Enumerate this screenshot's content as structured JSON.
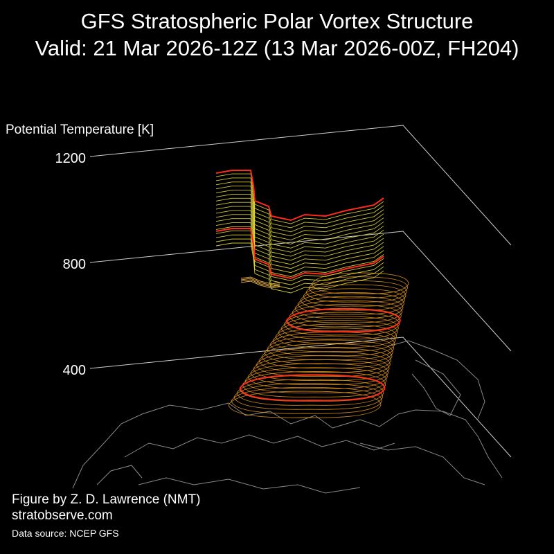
{
  "chart_data": {
    "type": "3d-isosurface",
    "title": "GFS Stratospheric Polar Vortex Structure",
    "subtitle": "Valid: 21 Mar 2026-12Z  (13 Mar 2026-00Z, FH204)",
    "zlabel": "Potential Temperature [K]",
    "zticks": [
      "1200",
      "800",
      "400"
    ],
    "layers": [
      {
        "theta_min": 400,
        "theta_max": 760,
        "color": "#e89a1e"
      },
      {
        "theta_min": 850,
        "theta_max": 880,
        "color": "#d9a640"
      },
      {
        "theta_min": 950,
        "theta_max": 1200,
        "color": "#e6dc3a"
      }
    ],
    "highlight_levels": [
      {
        "theta": 450,
        "color": "#ff2a1a"
      },
      {
        "theta": 650,
        "color": "#ff2a1a"
      },
      {
        "theta": 1000,
        "color": "#ff2a1a"
      },
      {
        "theta": 1200,
        "color": "#ff2a1a"
      }
    ],
    "grid": true,
    "basemap": "Northern Hemisphere coastlines"
  },
  "credits": {
    "author": "Figure by Z. D. Lawrence (NMT)",
    "site": "stratobserve.com",
    "source": "Data source: NCEP GFS"
  }
}
